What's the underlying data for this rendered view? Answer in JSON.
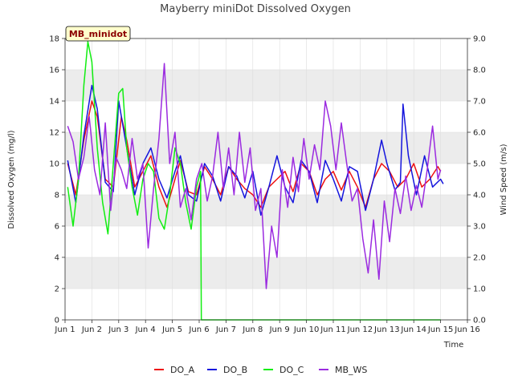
{
  "chart_data": {
    "type": "line",
    "title": "Mayberry miniDot Dissolved Oxygen",
    "site_label": "MB_minidot",
    "xlabel": "Time",
    "ylabel_left": "Dissolved Oxygen (mg/l)",
    "ylabel_right": "Wind Speed (m/s)",
    "ylim_left": [
      0,
      18
    ],
    "ylim_right": [
      0,
      9
    ],
    "xlim": [
      1,
      16
    ],
    "x_ticks": [
      {
        "value": 1,
        "label": "Jun 1"
      },
      {
        "value": 2,
        "label": "Jun 2"
      },
      {
        "value": 3,
        "label": "Jun 3"
      },
      {
        "value": 4,
        "label": "Jun 4"
      },
      {
        "value": 5,
        "label": "Jun 5"
      },
      {
        "value": 6,
        "label": "Jun 6"
      },
      {
        "value": 7,
        "label": "Jun 7"
      },
      {
        "value": 8,
        "label": "Jun 8"
      },
      {
        "value": 9,
        "label": "Jun 9"
      },
      {
        "value": 10,
        "label": "Jun 10"
      },
      {
        "value": 11,
        "label": "Jun 11"
      },
      {
        "value": 12,
        "label": "Jun 12"
      },
      {
        "value": 13,
        "label": "Jun 13"
      },
      {
        "value": 14,
        "label": "Jun 14"
      },
      {
        "value": 15,
        "label": "Jun 15"
      },
      {
        "value": 16,
        "label": "Jun 16"
      }
    ],
    "y_ticks_left": [
      0,
      2,
      4,
      6,
      8,
      10,
      12,
      14,
      16,
      18
    ],
    "y_ticks_right": [
      "0.0",
      "1.0",
      "2.0",
      "3.0",
      "4.0",
      "5.0",
      "6.0",
      "7.0",
      "8.0",
      "9.0"
    ],
    "series": [
      {
        "name": "DO_A",
        "color": "#ee1111",
        "axis": "left",
        "points": [
          [
            1.1,
            10.0
          ],
          [
            1.4,
            8.0
          ],
          [
            1.7,
            11.5
          ],
          [
            2.0,
            14.0
          ],
          [
            2.2,
            13.0
          ],
          [
            2.5,
            9.0
          ],
          [
            2.8,
            8.5
          ],
          [
            3.1,
            13.0
          ],
          [
            3.3,
            11.5
          ],
          [
            3.6,
            8.5
          ],
          [
            3.9,
            9.5
          ],
          [
            4.2,
            10.5
          ],
          [
            4.5,
            8.5
          ],
          [
            4.8,
            7.2
          ],
          [
            5.1,
            9.0
          ],
          [
            5.3,
            10.2
          ],
          [
            5.6,
            8.2
          ],
          [
            5.9,
            8.0
          ],
          [
            6.2,
            9.8
          ],
          [
            6.5,
            9.0
          ],
          [
            6.8,
            8.0
          ],
          [
            7.1,
            9.8
          ],
          [
            7.4,
            9.0
          ],
          [
            7.7,
            8.4
          ],
          [
            8.0,
            8.0
          ],
          [
            8.3,
            7.2
          ],
          [
            8.6,
            8.5
          ],
          [
            8.9,
            9.0
          ],
          [
            9.2,
            9.5
          ],
          [
            9.5,
            8.2
          ],
          [
            9.8,
            10.0
          ],
          [
            10.1,
            9.5
          ],
          [
            10.4,
            8.0
          ],
          [
            10.7,
            9.0
          ],
          [
            11.0,
            9.5
          ],
          [
            11.3,
            8.3
          ],
          [
            11.6,
            9.5
          ],
          [
            11.9,
            8.5
          ],
          [
            12.2,
            7.2
          ],
          [
            12.5,
            9.0
          ],
          [
            12.8,
            10.0
          ],
          [
            13.1,
            9.5
          ],
          [
            13.4,
            8.5
          ],
          [
            13.7,
            9.0
          ],
          [
            14.0,
            10.0
          ],
          [
            14.3,
            8.5
          ],
          [
            14.6,
            9.0
          ],
          [
            14.9,
            9.8
          ],
          [
            15.0,
            9.5
          ]
        ]
      },
      {
        "name": "DO_B",
        "color": "#1515dd",
        "axis": "left",
        "points": [
          [
            1.1,
            10.2
          ],
          [
            1.4,
            7.5
          ],
          [
            1.7,
            11.8
          ],
          [
            2.0,
            15.0
          ],
          [
            2.2,
            13.5
          ],
          [
            2.5,
            8.8
          ],
          [
            2.8,
            8.2
          ],
          [
            3.0,
            14.0
          ],
          [
            3.3,
            11.0
          ],
          [
            3.6,
            8.0
          ],
          [
            3.9,
            10.0
          ],
          [
            4.2,
            11.0
          ],
          [
            4.5,
            9.0
          ],
          [
            4.8,
            7.8
          ],
          [
            5.1,
            9.5
          ],
          [
            5.3,
            10.5
          ],
          [
            5.6,
            8.0
          ],
          [
            5.9,
            7.6
          ],
          [
            6.2,
            10.0
          ],
          [
            6.5,
            9.2
          ],
          [
            6.8,
            7.6
          ],
          [
            7.1,
            9.8
          ],
          [
            7.4,
            9.2
          ],
          [
            7.7,
            7.8
          ],
          [
            8.0,
            9.5
          ],
          [
            8.3,
            6.7
          ],
          [
            8.6,
            8.5
          ],
          [
            8.9,
            10.5
          ],
          [
            9.2,
            8.5
          ],
          [
            9.5,
            7.5
          ],
          [
            9.8,
            10.2
          ],
          [
            10.1,
            9.5
          ],
          [
            10.4,
            7.5
          ],
          [
            10.7,
            10.2
          ],
          [
            11.0,
            9.0
          ],
          [
            11.3,
            7.6
          ],
          [
            11.6,
            9.8
          ],
          [
            11.9,
            9.5
          ],
          [
            12.2,
            7.0
          ],
          [
            12.5,
            9.0
          ],
          [
            12.8,
            11.5
          ],
          [
            13.0,
            10.0
          ],
          [
            13.3,
            8.3
          ],
          [
            13.5,
            8.8
          ],
          [
            13.6,
            13.8
          ],
          [
            13.8,
            10.5
          ],
          [
            14.1,
            8.0
          ],
          [
            14.4,
            10.5
          ],
          [
            14.7,
            8.5
          ],
          [
            15.0,
            9.0
          ],
          [
            15.1,
            8.7
          ]
        ]
      },
      {
        "name": "DO_C",
        "color": "#11ee11",
        "axis": "left",
        "points": [
          [
            1.1,
            8.5
          ],
          [
            1.3,
            6.0
          ],
          [
            1.5,
            9.0
          ],
          [
            1.7,
            15.0
          ],
          [
            1.85,
            17.8
          ],
          [
            2.0,
            16.5
          ],
          [
            2.2,
            11.0
          ],
          [
            2.4,
            7.5
          ],
          [
            2.6,
            5.5
          ],
          [
            2.8,
            10.0
          ],
          [
            3.0,
            14.5
          ],
          [
            3.15,
            14.8
          ],
          [
            3.3,
            11.0
          ],
          [
            3.5,
            8.5
          ],
          [
            3.7,
            6.7
          ],
          [
            3.9,
            9.0
          ],
          [
            4.1,
            10.0
          ],
          [
            4.3,
            9.5
          ],
          [
            4.5,
            6.5
          ],
          [
            4.7,
            5.8
          ],
          [
            4.9,
            8.0
          ],
          [
            5.1,
            11.0
          ],
          [
            5.3,
            10.0
          ],
          [
            5.5,
            7.5
          ],
          [
            5.7,
            5.8
          ],
          [
            5.9,
            8.5
          ],
          [
            6.05,
            9.5
          ],
          [
            6.08,
            0.0
          ],
          [
            15.0,
            0.0
          ]
        ]
      },
      {
        "name": "MB_WS",
        "color": "#9b2be0",
        "axis": "right",
        "points": [
          [
            1.1,
            6.2
          ],
          [
            1.3,
            5.7
          ],
          [
            1.5,
            4.5
          ],
          [
            1.7,
            5.2
          ],
          [
            1.9,
            6.5
          ],
          [
            2.1,
            4.8
          ],
          [
            2.3,
            4.0
          ],
          [
            2.5,
            6.3
          ],
          [
            2.7,
            3.5
          ],
          [
            2.9,
            5.2
          ],
          [
            3.1,
            4.8
          ],
          [
            3.3,
            4.2
          ],
          [
            3.5,
            5.8
          ],
          [
            3.7,
            4.5
          ],
          [
            3.9,
            5.0
          ],
          [
            4.1,
            2.3
          ],
          [
            4.3,
            4.2
          ],
          [
            4.5,
            5.8
          ],
          [
            4.7,
            8.2
          ],
          [
            4.9,
            5.0
          ],
          [
            5.1,
            6.0
          ],
          [
            5.3,
            3.6
          ],
          [
            5.5,
            4.2
          ],
          [
            5.7,
            3.2
          ],
          [
            5.9,
            4.5
          ],
          [
            6.1,
            5.0
          ],
          [
            6.3,
            3.8
          ],
          [
            6.5,
            4.6
          ],
          [
            6.7,
            6.0
          ],
          [
            6.9,
            4.2
          ],
          [
            7.1,
            5.5
          ],
          [
            7.3,
            4.0
          ],
          [
            7.5,
            6.0
          ],
          [
            7.7,
            4.4
          ],
          [
            7.9,
            5.5
          ],
          [
            8.1,
            3.5
          ],
          [
            8.3,
            4.2
          ],
          [
            8.5,
            1.0
          ],
          [
            8.7,
            3.0
          ],
          [
            8.9,
            2.0
          ],
          [
            9.1,
            4.8
          ],
          [
            9.3,
            3.6
          ],
          [
            9.5,
            5.2
          ],
          [
            9.7,
            4.1
          ],
          [
            9.9,
            5.8
          ],
          [
            10.1,
            4.5
          ],
          [
            10.3,
            5.6
          ],
          [
            10.5,
            4.8
          ],
          [
            10.7,
            7.0
          ],
          [
            10.9,
            6.2
          ],
          [
            11.1,
            4.8
          ],
          [
            11.3,
            6.3
          ],
          [
            11.5,
            5.0
          ],
          [
            11.7,
            3.8
          ],
          [
            11.9,
            4.2
          ],
          [
            12.1,
            2.6
          ],
          [
            12.3,
            1.5
          ],
          [
            12.5,
            3.2
          ],
          [
            12.7,
            1.3
          ],
          [
            12.9,
            3.8
          ],
          [
            13.1,
            2.5
          ],
          [
            13.3,
            4.2
          ],
          [
            13.5,
            3.4
          ],
          [
            13.7,
            4.6
          ],
          [
            13.9,
            3.5
          ],
          [
            14.1,
            4.3
          ],
          [
            14.3,
            3.6
          ],
          [
            14.5,
            4.8
          ],
          [
            14.7,
            6.2
          ],
          [
            14.9,
            4.5
          ],
          [
            15.0,
            4.8
          ]
        ]
      }
    ],
    "legend_position": "bottom",
    "bands": "alternating gray horizontal bands"
  }
}
